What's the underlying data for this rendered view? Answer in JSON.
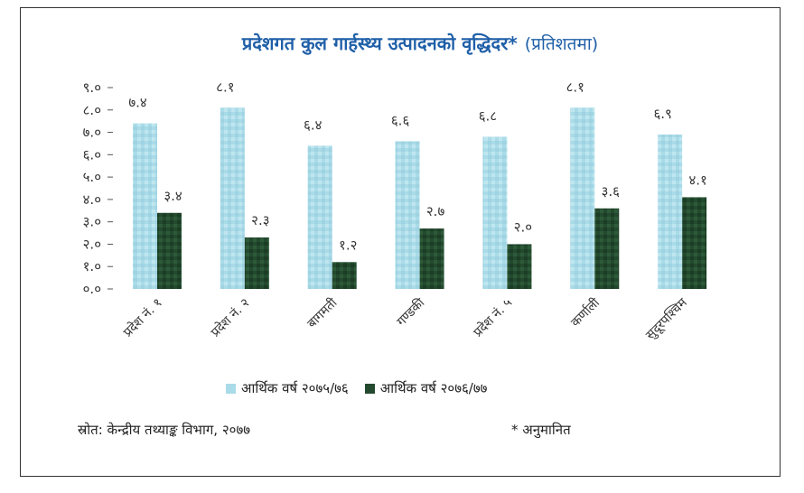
{
  "title": "प्रदेशगत कुल गार्हस्थ्य उत्पादनको वृद्धिदर*",
  "unit": "(प्रतिशतमा)",
  "source": "स्रोत: केन्द्रीय तथ्याङ्क विभाग, २०७७",
  "note": "* अनुमानित",
  "colors": {
    "series1": "#a9dbe8",
    "series2": "#234a2e"
  },
  "chart_data": {
    "type": "bar",
    "categories": [
      "प्रदेश नं. १",
      "प्रदेश नं. २",
      "बागमती",
      "गण्डकी",
      "प्रदेश नं. ५",
      "कर्णाली",
      "सुदूरपश्चिम"
    ],
    "series": [
      {
        "name": "आर्थिक वर्ष २०७५/७६",
        "values": [
          7.4,
          8.1,
          6.4,
          6.6,
          6.8,
          8.1,
          6.9
        ],
        "labels": [
          "७.४",
          "८.१",
          "६.४",
          "६.६",
          "६.८",
          "८.१",
          "६.९"
        ]
      },
      {
        "name": "आर्थिक वर्ष २०७६/७७",
        "values": [
          3.4,
          2.3,
          1.2,
          2.7,
          2.0,
          3.6,
          4.1
        ],
        "labels": [
          "३.४",
          "२.३",
          "१.२",
          "२.७",
          "२.०",
          "३.६",
          "४.१"
        ]
      }
    ],
    "y_ticks": [
      0,
      1,
      2,
      3,
      4,
      5,
      6,
      7,
      8,
      9
    ],
    "y_tick_labels": [
      "०.०",
      "१.०",
      "२.०",
      "३.०",
      "४.०",
      "५.०",
      "६.०",
      "७.०",
      "८.०",
      "९.०"
    ],
    "ylim": [
      0,
      9
    ],
    "grid": false,
    "legend": "bottom"
  }
}
